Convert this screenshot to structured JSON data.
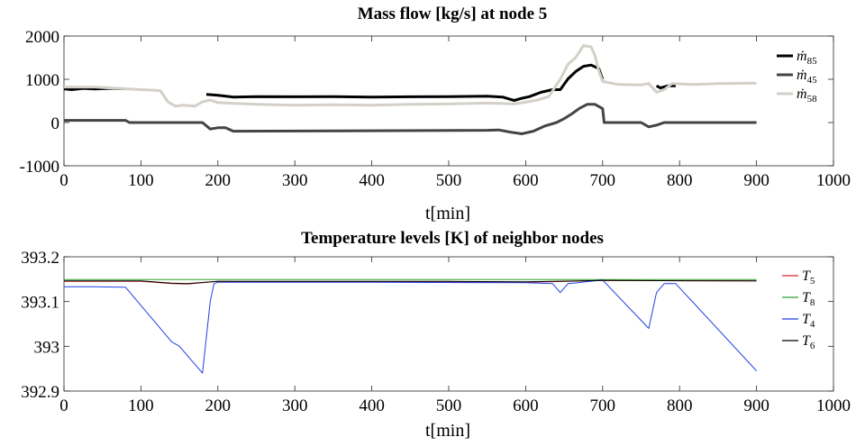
{
  "chart_data": [
    {
      "type": "line",
      "title": "Mass flow [kg/s] at node 5",
      "xlabel": "t[min]",
      "ylabel": "",
      "xlim": [
        0,
        1000
      ],
      "ylim": [
        -1000,
        2000
      ],
      "xticks": [
        "0",
        "100",
        "200",
        "300",
        "400",
        "500",
        "600",
        "700",
        "800",
        "900",
        "1000"
      ],
      "yticks": [
        "-1000",
        "0",
        "1000",
        "2000"
      ],
      "grid": false,
      "legend": "right",
      "series": [
        {
          "name": "ṁ",
          "subscript": "85",
          "color": "#000000",
          "width": 3,
          "points": [
            [
              0,
              780
            ],
            [
              10,
              760
            ],
            [
              25,
              790
            ],
            [
              40,
              775
            ],
            [
              60,
              790
            ],
            [
              80,
              780
            ],
            [
              180,
              null
            ],
            [
              185,
              650
            ],
            [
              200,
              630
            ],
            [
              220,
              590
            ],
            [
              250,
              600
            ],
            [
              300,
              595
            ],
            [
              350,
              600
            ],
            [
              400,
              590
            ],
            [
              450,
              595
            ],
            [
              500,
              600
            ],
            [
              550,
              610
            ],
            [
              570,
              590
            ],
            [
              585,
              510
            ],
            [
              595,
              560
            ],
            [
              605,
              600
            ],
            [
              620,
              700
            ],
            [
              635,
              760
            ],
            [
              645,
              760
            ],
            [
              655,
              1010
            ],
            [
              665,
              1180
            ],
            [
              675,
              1300
            ],
            [
              685,
              1330
            ],
            [
              695,
              1250
            ],
            [
              700,
              1000
            ],
            [
              705,
              null
            ],
            [
              770,
              850
            ],
            [
              775,
              800
            ],
            [
              785,
              850
            ],
            [
              795,
              850
            ]
          ]
        },
        {
          "name": "ṁ",
          "subscript": "45",
          "color": "#444444",
          "width": 3,
          "points": [
            [
              0,
              50
            ],
            [
              80,
              50
            ],
            [
              85,
              0
            ],
            [
              180,
              0
            ],
            [
              190,
              -150
            ],
            [
              200,
              -120
            ],
            [
              210,
              -120
            ],
            [
              220,
              -200
            ],
            [
              400,
              -190
            ],
            [
              550,
              -180
            ],
            [
              565,
              -170
            ],
            [
              580,
              -220
            ],
            [
              595,
              -260
            ],
            [
              610,
              -200
            ],
            [
              625,
              -80
            ],
            [
              640,
              0
            ],
            [
              650,
              90
            ],
            [
              660,
              200
            ],
            [
              670,
              330
            ],
            [
              680,
              420
            ],
            [
              690,
              420
            ],
            [
              700,
              320
            ],
            [
              702,
              0
            ],
            [
              750,
              0
            ],
            [
              760,
              -100
            ],
            [
              770,
              -60
            ],
            [
              780,
              0
            ],
            [
              900,
              0
            ]
          ]
        },
        {
          "name": "ṁ",
          "subscript": "58",
          "color": "#d4d0c8",
          "width": 3,
          "points": [
            [
              0,
              820
            ],
            [
              40,
              820
            ],
            [
              80,
              780
            ],
            [
              125,
              740
            ],
            [
              135,
              480
            ],
            [
              145,
              380
            ],
            [
              155,
              400
            ],
            [
              170,
              380
            ],
            [
              180,
              480
            ],
            [
              190,
              520
            ],
            [
              200,
              460
            ],
            [
              250,
              420
            ],
            [
              300,
              400
            ],
            [
              350,
              410
            ],
            [
              400,
              400
            ],
            [
              450,
              420
            ],
            [
              500,
              430
            ],
            [
              550,
              450
            ],
            [
              570,
              440
            ],
            [
              585,
              430
            ],
            [
              600,
              470
            ],
            [
              615,
              520
            ],
            [
              630,
              600
            ],
            [
              645,
              1000
            ],
            [
              655,
              1350
            ],
            [
              665,
              1500
            ],
            [
              675,
              1780
            ],
            [
              685,
              1750
            ],
            [
              690,
              1550
            ],
            [
              695,
              1200
            ],
            [
              700,
              950
            ],
            [
              720,
              880
            ],
            [
              750,
              870
            ],
            [
              760,
              900
            ],
            [
              770,
              700
            ],
            [
              780,
              760
            ],
            [
              790,
              900
            ],
            [
              820,
              880
            ],
            [
              850,
              900
            ],
            [
              900,
              910
            ]
          ]
        }
      ]
    },
    {
      "type": "line",
      "title": "Temperature levels [K] of neighbor nodes",
      "xlabel": "t[min]",
      "ylabel": "",
      "xlim": [
        0,
        1000
      ],
      "ylim": [
        392.9,
        393.2
      ],
      "xticks": [
        "0",
        "100",
        "200",
        "300",
        "400",
        "500",
        "600",
        "700",
        "800",
        "900",
        "1000"
      ],
      "yticks": [
        "392.9",
        "393",
        "393.1",
        "393.2"
      ],
      "grid": false,
      "legend": "right",
      "series": [
        {
          "name": "T",
          "subscript": "5",
          "color": "#d62728",
          "width": 1,
          "points": [
            [
              0,
              393.145
            ],
            [
              100,
              393.145
            ],
            [
              140,
              393.14
            ],
            [
              160,
              393.139
            ],
            [
              200,
              393.145
            ],
            [
              400,
              393.144
            ],
            [
              600,
              393.143
            ],
            [
              700,
              393.147
            ],
            [
              900,
              393.146
            ]
          ]
        },
        {
          "name": "T",
          "subscript": "8",
          "color": "#2ca02c",
          "width": 1,
          "points": [
            [
              0,
              393.149
            ],
            [
              300,
              393.149
            ],
            [
              600,
              393.149
            ],
            [
              900,
              393.149
            ]
          ]
        },
        {
          "name": "T",
          "subscript": "4",
          "color": "#1f3fe6",
          "width": 1,
          "points": [
            [
              0,
              393.133
            ],
            [
              40,
              393.133
            ],
            [
              80,
              393.132
            ],
            [
              140,
              393.01
            ],
            [
              150,
              393.0
            ],
            [
              180,
              392.94
            ],
            [
              190,
              393.1
            ],
            [
              195,
              393.14
            ],
            [
              200,
              393.143
            ],
            [
              400,
              393.143
            ],
            [
              600,
              393.142
            ],
            [
              635,
              393.14
            ],
            [
              645,
              393.12
            ],
            [
              655,
              393.14
            ],
            [
              700,
              393.148
            ],
            [
              760,
              393.04
            ],
            [
              770,
              393.12
            ],
            [
              780,
              393.14
            ],
            [
              795,
              393.14
            ],
            [
              900,
              392.945
            ]
          ]
        },
        {
          "name": "T",
          "subscript": "6",
          "color": "#000000",
          "width": 1,
          "points": [
            [
              0,
              393.146
            ],
            [
              100,
              393.146
            ],
            [
              140,
              393.141
            ],
            [
              160,
              393.14
            ],
            [
              200,
              393.145
            ],
            [
              500,
              393.145
            ],
            [
              600,
              393.144
            ],
            [
              700,
              393.147
            ],
            [
              900,
              393.146
            ]
          ]
        }
      ]
    }
  ]
}
